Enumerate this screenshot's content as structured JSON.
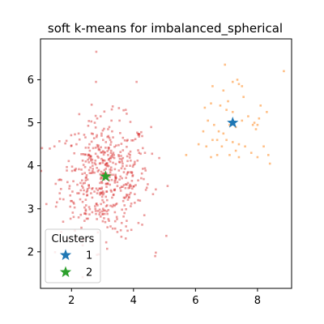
{
  "chart_data": {
    "type": "scatter",
    "title": "soft k-means for imbalanced_spherical",
    "xlabel": "",
    "ylabel": "",
    "xlim": [
      1.0,
      9.1
    ],
    "ylim": [
      1.15,
      6.95
    ],
    "xticks": [
      2,
      4,
      6,
      8
    ],
    "yticks": [
      2,
      3,
      4,
      5,
      6
    ],
    "grid": false,
    "legend": {
      "title": "Clusters",
      "placement": "lower-left",
      "entries": [
        {
          "label": "1",
          "color": "#1f77b4",
          "marker": "star"
        },
        {
          "label": "2",
          "color": "#2ca02c",
          "marker": "star"
        }
      ]
    },
    "centers": [
      {
        "name": "1",
        "x": 7.2,
        "y": 5.0,
        "color": "#1f77b4"
      },
      {
        "name": "2",
        "x": 3.1,
        "y": 3.75,
        "color": "#2ca02c"
      }
    ],
    "clusters": [
      {
        "color": "#ff7f0e",
        "opacity": 0.5,
        "points": [
          [
            6.55,
            5.85
          ],
          [
            6.9,
            5.75
          ],
          [
            7.2,
            5.95
          ],
          [
            7.4,
            5.9
          ],
          [
            7.35,
            6.0
          ],
          [
            7.5,
            5.85
          ],
          [
            6.95,
            6.35
          ],
          [
            8.85,
            6.2
          ],
          [
            6.3,
            5.35
          ],
          [
            6.5,
            5.45
          ],
          [
            6.8,
            5.4
          ],
          [
            7.0,
            5.3
          ],
          [
            7.2,
            5.25
          ],
          [
            7.05,
            5.5
          ],
          [
            8.1,
            5.4
          ],
          [
            8.3,
            5.25
          ],
          [
            6.4,
            5.05
          ],
          [
            6.6,
            4.95
          ],
          [
            6.75,
            4.8
          ],
          [
            6.9,
            4.75
          ],
          [
            7.1,
            4.95
          ],
          [
            7.3,
            4.9
          ],
          [
            7.5,
            5.05
          ],
          [
            7.7,
            5.15
          ],
          [
            7.9,
            5.0
          ],
          [
            7.95,
            4.85
          ],
          [
            8.0,
            4.95
          ],
          [
            7.85,
            4.95
          ],
          [
            6.1,
            4.5
          ],
          [
            6.35,
            4.45
          ],
          [
            6.55,
            4.6
          ],
          [
            6.7,
            4.6
          ],
          [
            6.85,
            4.45
          ],
          [
            7.0,
            4.6
          ],
          [
            7.2,
            4.55
          ],
          [
            7.4,
            4.5
          ],
          [
            7.6,
            4.45
          ],
          [
            7.3,
            4.35
          ],
          [
            6.7,
            4.25
          ],
          [
            6.5,
            4.2
          ],
          [
            7.1,
            4.25
          ],
          [
            7.4,
            4.2
          ],
          [
            7.8,
            4.3
          ],
          [
            8.0,
            4.2
          ],
          [
            8.2,
            4.45
          ],
          [
            8.35,
            4.25
          ],
          [
            8.4,
            4.05
          ],
          [
            5.7,
            4.25
          ],
          [
            8.05,
            5.1
          ],
          [
            7.55,
            5.6
          ],
          [
            6.25,
            4.8
          ]
        ]
      },
      {
        "color": "#d62728",
        "opacity": 0.45,
        "points": []
      }
    ]
  }
}
